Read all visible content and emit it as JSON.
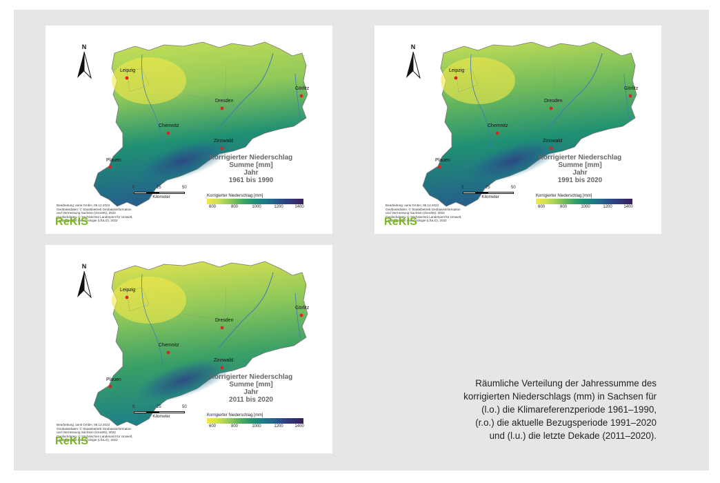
{
  "north_label": "N",
  "cities": {
    "leipzig": "Leipzig",
    "dresden": "Dresden",
    "goerlitz": "Görlitz",
    "chemnitz": "Chemnitz",
    "zinnwald": "Zinnwald",
    "plauen": "Plauen"
  },
  "map_title": {
    "line1": "Korrigierter Niederschlag",
    "line2": "Summe [mm]",
    "line3": "Jahr"
  },
  "scale": {
    "ticks": [
      "0",
      "25",
      "50"
    ],
    "unit": "Kilometer"
  },
  "legend": {
    "title": "Korrigierter Niederschlag [mm]",
    "ticks": [
      "600",
      "800",
      "1000",
      "1200",
      "1400"
    ],
    "colors": [
      "#f4e84a",
      "#c9e055",
      "#8fc85a",
      "#4aac5e",
      "#1f9073",
      "#1d7f86",
      "#245f8c",
      "#2e3f82",
      "#3a1e5c"
    ]
  },
  "credits": [
    "Bearbeitung: iamk GmbH, 06.12.2022",
    "Geobasisdaten: © Staatsbetrieb Geobasisinformation",
    "und Vermessung Sachsen (GeoSN), 2022",
    "Geofachdaten: © Sächsisches Landesamt für Umwelt,",
    "Landwirtschaft und Geologie (LfULG), 2022"
  ],
  "logo": "ReKIS",
  "maps": [
    {
      "period": "1961 bis 1990"
    },
    {
      "period": "1991 bis 2020"
    },
    {
      "period": "2011 bis 2020"
    }
  ],
  "caption": [
    "Räumliche Verteilung der Jahressumme des",
    "korrigierten Niederschlags (mm) in Sachsen für",
    "(l.o.) die Klimareferenzperiode 1961–1990,",
    "(r.o.) die aktuelle Bezugsperiode 1991–2020",
    "und (l.u.) die letzte Dekade (2011–2020)."
  ]
}
